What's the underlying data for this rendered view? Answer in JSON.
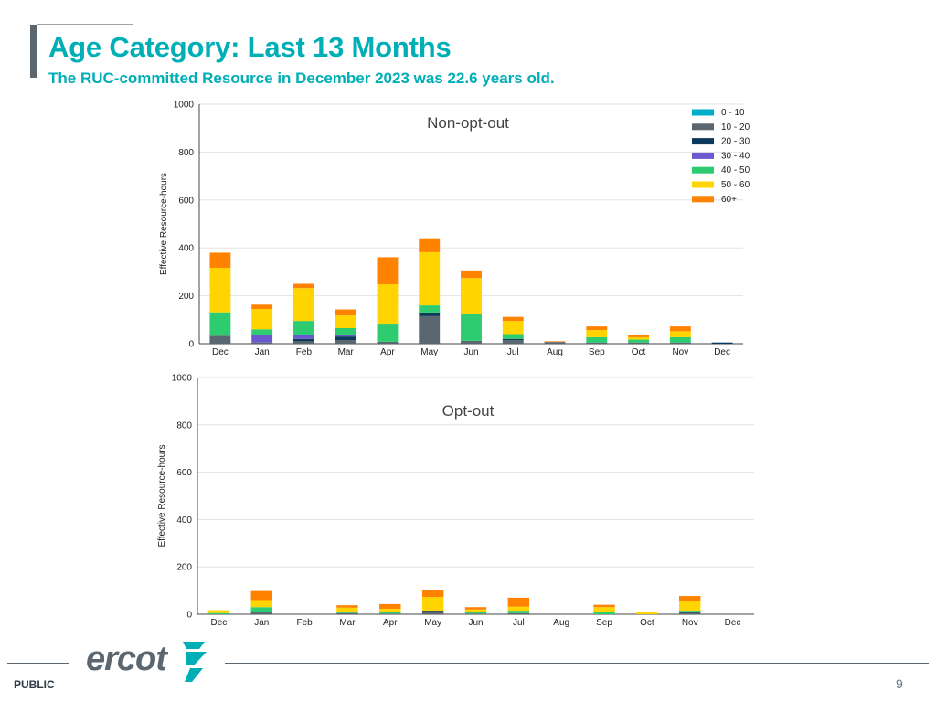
{
  "slide": {
    "title": "Age Category: Last 13 Months",
    "subtitle": "The RUC-committed Resource in December 2023 was 22.6 years old."
  },
  "footer": {
    "public_label": "PUBLIC",
    "page_number": "9",
    "logo_text": "ercot"
  },
  "colors": {
    "0 - 10": "#00aec7",
    "10 - 20": "#5b6770",
    "20 - 30": "#0d3a5c",
    "30 - 40": "#6a5acd",
    "40 - 50": "#2ecc71",
    "50 - 60": "#ffd400",
    "60+": "#ff8200",
    "title": "#00aeb6"
  },
  "chart_data": [
    {
      "type": "bar",
      "stacked": true,
      "title": "Non-opt-out",
      "ylabel": "Effective Resource-hours",
      "xlabel": "",
      "ylim": [
        0,
        1000
      ],
      "yticks": [
        0,
        200,
        400,
        600,
        800,
        1000
      ],
      "grid": true,
      "legend_position": "top-right",
      "categories": [
        "Dec",
        "Jan",
        "Feb",
        "Mar",
        "Apr",
        "May",
        "Jun",
        "Jul",
        "Aug",
        "Sep",
        "Oct",
        "Nov",
        "Dec"
      ],
      "series": [
        {
          "name": "0 - 10",
          "values": [
            0,
            0,
            0,
            0,
            0,
            0,
            0,
            0,
            0,
            0,
            0,
            0,
            0
          ]
        },
        {
          "name": "10 - 20",
          "values": [
            33,
            5,
            10,
            15,
            8,
            115,
            12,
            15,
            5,
            5,
            5,
            5,
            0
          ]
        },
        {
          "name": "20 - 30",
          "values": [
            0,
            0,
            10,
            15,
            0,
            15,
            0,
            5,
            2,
            0,
            0,
            0,
            5
          ]
        },
        {
          "name": "30 - 40",
          "values": [
            0,
            30,
            15,
            5,
            0,
            0,
            0,
            0,
            0,
            0,
            0,
            0,
            0
          ]
        },
        {
          "name": "40 - 50",
          "values": [
            98,
            25,
            60,
            30,
            72,
            30,
            112,
            20,
            0,
            22,
            12,
            22,
            0
          ]
        },
        {
          "name": "50 - 60",
          "values": [
            186,
            85,
            137,
            53,
            168,
            222,
            150,
            55,
            0,
            30,
            10,
            25,
            0
          ]
        },
        {
          "name": "60+",
          "values": [
            63,
            18,
            18,
            25,
            113,
            58,
            32,
            17,
            3,
            15,
            8,
            20,
            0
          ]
        }
      ]
    },
    {
      "type": "bar",
      "stacked": true,
      "title": "Opt-out",
      "ylabel": "Effective Resource-hours",
      "xlabel": "",
      "ylim": [
        0,
        1000
      ],
      "yticks": [
        0,
        200,
        400,
        600,
        800,
        1000
      ],
      "grid": true,
      "categories": [
        "Dec",
        "Jan",
        "Feb",
        "Mar",
        "Apr",
        "May",
        "Jun",
        "Jul",
        "Aug",
        "Sep",
        "Oct",
        "Nov",
        "Dec"
      ],
      "series": [
        {
          "name": "0 - 10",
          "values": [
            0,
            0,
            0,
            0,
            0,
            0,
            0,
            0,
            0,
            0,
            0,
            0,
            0
          ]
        },
        {
          "name": "10 - 20",
          "values": [
            0,
            8,
            0,
            5,
            3,
            10,
            3,
            5,
            0,
            0,
            0,
            5,
            0
          ]
        },
        {
          "name": "20 - 30",
          "values": [
            0,
            0,
            0,
            0,
            0,
            5,
            0,
            0,
            0,
            0,
            0,
            5,
            0
          ]
        },
        {
          "name": "30 - 40",
          "values": [
            0,
            0,
            0,
            0,
            0,
            0,
            0,
            0,
            0,
            0,
            0,
            0,
            0
          ]
        },
        {
          "name": "40 - 50",
          "values": [
            5,
            22,
            0,
            5,
            5,
            0,
            5,
            10,
            0,
            10,
            0,
            5,
            0
          ]
        },
        {
          "name": "50 - 60",
          "values": [
            12,
            30,
            0,
            18,
            15,
            58,
            12,
            17,
            0,
            20,
            8,
            42,
            0
          ]
        },
        {
          "name": "60+",
          "values": [
            0,
            38,
            0,
            10,
            20,
            30,
            10,
            38,
            0,
            10,
            3,
            20,
            0
          ]
        }
      ]
    }
  ]
}
